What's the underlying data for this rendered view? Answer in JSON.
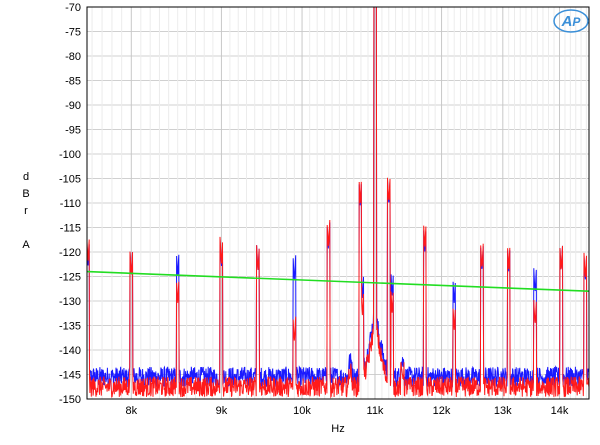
{
  "chart_data": {
    "type": "line",
    "title": "",
    "xlabel": "Hz",
    "ylabel": [
      "d",
      "B",
      "r",
      "",
      "A"
    ],
    "xlim": [
      7550,
      14550
    ],
    "ylim": [
      -150,
      -70
    ],
    "x_scale": "log",
    "grid": true,
    "x_ticks": [
      {
        "value": 8000,
        "label": "8k"
      },
      {
        "value": 9000,
        "label": "9k"
      },
      {
        "value": 10000,
        "label": "10k"
      },
      {
        "value": 11000,
        "label": "11k"
      },
      {
        "value": 12000,
        "label": "12k"
      },
      {
        "value": 13000,
        "label": "13k"
      },
      {
        "value": 14000,
        "label": "14k"
      }
    ],
    "y_ticks": [
      -70,
      -75,
      -80,
      -85,
      -90,
      -95,
      -100,
      -105,
      -110,
      -115,
      -120,
      -125,
      -130,
      -135,
      -140,
      -145,
      -150
    ],
    "logo_text": "AP",
    "series": [
      {
        "color": "#1a1aff",
        "noise_floor": -145.5,
        "peaks": [
          [
            7560,
            -123
          ],
          [
            8000,
            -125
          ],
          [
            8500,
            -125
          ],
          [
            9000,
            -123
          ],
          [
            9440,
            -124
          ],
          [
            9900,
            -126
          ],
          [
            10350,
            -119.5
          ],
          [
            10790,
            -110.5
          ],
          [
            10820,
            -129.5
          ],
          [
            11000,
            -70
          ],
          [
            11200,
            -110.5
          ],
          [
            11250,
            -129
          ],
          [
            11740,
            -120
          ],
          [
            12200,
            -130.5
          ],
          [
            12650,
            -124
          ],
          [
            13100,
            -124
          ],
          [
            13560,
            -128.5
          ],
          [
            14030,
            -124
          ],
          [
            14480,
            -126
          ]
        ]
      },
      {
        "color": "#ff1a1a",
        "noise_floor": -147.5,
        "peaks": [
          [
            7560,
            -122
          ],
          [
            8000,
            -125
          ],
          [
            8500,
            -130.5
          ],
          [
            9000,
            -122.5
          ],
          [
            9440,
            -124
          ],
          [
            9900,
            -138.5
          ],
          [
            10350,
            -119
          ],
          [
            10790,
            -110
          ],
          [
            10820,
            -133
          ],
          [
            11000,
            -70
          ],
          [
            11200,
            -110
          ],
          [
            11250,
            -132.5
          ],
          [
            11740,
            -119
          ],
          [
            12200,
            -136
          ],
          [
            12650,
            -123.5
          ],
          [
            13100,
            -123.5
          ],
          [
            13560,
            -135
          ],
          [
            14030,
            -124
          ],
          [
            14480,
            -125.5
          ]
        ]
      },
      {
        "color": "#22dd22",
        "points": [
          [
            7550,
            -124
          ],
          [
            14550,
            -128
          ]
        ]
      }
    ]
  }
}
